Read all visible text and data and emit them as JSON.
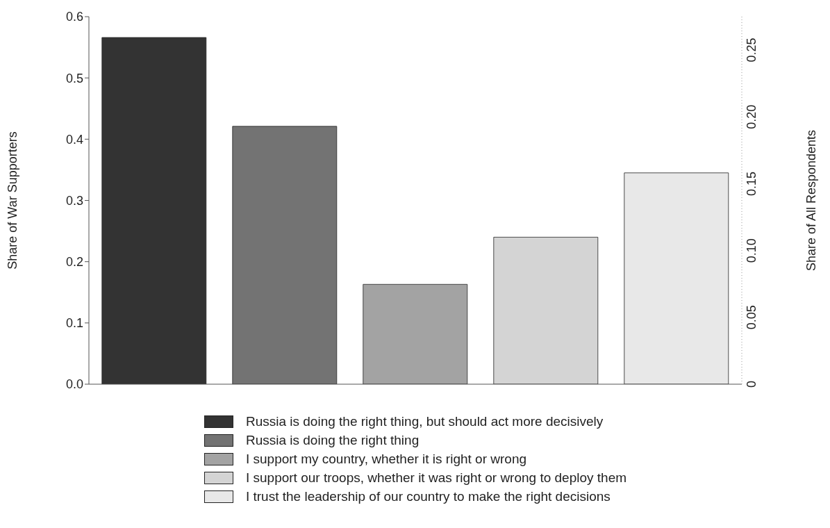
{
  "chart_data": {
    "type": "bar",
    "stacked": true,
    "ylabel": "Share of War Supporters",
    "y2label": "Share of All Respondents",
    "categories": [
      null,
      null,
      null,
      null,
      null
    ],
    "series": [
      {
        "name": "Russia is doing the right thing, but should act more decisively",
        "color": "#333333",
        "values": [
          0.566,
          null,
          null,
          null,
          null
        ]
      },
      {
        "name": "Russia is doing the right thing",
        "color": "#737373",
        "values": [
          null,
          0.421,
          null,
          null,
          null
        ]
      },
      {
        "name": "I support my country, whether it is right or wrong",
        "color": "#a3a3a3",
        "values": [
          null,
          null,
          0.163,
          null,
          null
        ]
      },
      {
        "name": "I support our troops, whether it was right or wrong to deploy them",
        "color": "#d4d4d4",
        "values": [
          null,
          null,
          null,
          0.24,
          null
        ]
      },
      {
        "name": "I trust the leadership of our country to make the right decisions",
        "color": "#e8e8e8",
        "values": [
          null,
          null,
          null,
          null,
          0.345
        ]
      }
    ],
    "ylim": [
      0,
      0.6
    ],
    "yticks": [
      {
        "value": 0,
        "label": "0.0"
      },
      0.1,
      0.2,
      0.3,
      0.4,
      0.5,
      0.6
    ],
    "y2lim": [
      0,
      0.275
    ],
    "y2ticks": [
      0,
      0.05,
      {
        "value": 0.1,
        "label": "0.10"
      },
      0.15,
      {
        "value": 0.2,
        "label": "0.20"
      },
      0.25
    ],
    "legend": "bottom"
  }
}
